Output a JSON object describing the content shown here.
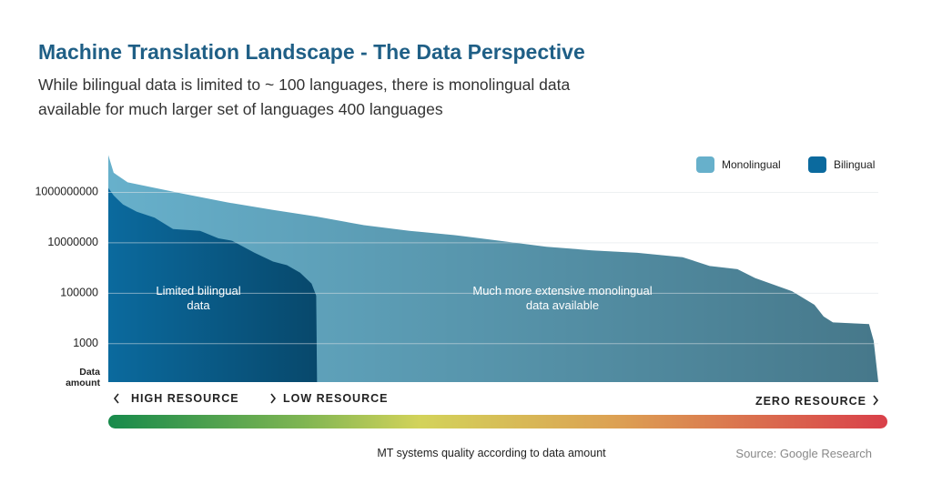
{
  "chart_data": {
    "type": "area",
    "title": "Machine Translation Landscape - The Data Perspective",
    "subtitle": "While bilingual data is limited to ~ 100 languages, there is monolingual data available for much larger set of languages 400 languages",
    "y_label": "Data amount",
    "log_y": true,
    "ylim": [
      30,
      100000000000
    ],
    "yticks": [
      1000,
      100000,
      10000000,
      1000000000
    ],
    "xlim": [
      0,
      100
    ],
    "grid": true,
    "legend": "top-right",
    "series": [
      {
        "name": "Monolingual",
        "color": "#67b0cb",
        "x": [
          0,
          0.7,
          2.5,
          9.6,
          15.5,
          21.4,
          27,
          33.2,
          39.1,
          45,
          50.9,
          56.9,
          62.8,
          68.7,
          74.6,
          78.1,
          81.7,
          84,
          88.8,
          91.7,
          92.9,
          94.1,
          98.8,
          99.4,
          100
        ],
        "values": [
          30000000000,
          6000000000,
          2500000000,
          900000000,
          400000000,
          200000000,
          110000000,
          50000000,
          30000000,
          20000000,
          12000000,
          7000000,
          5000000,
          4000000,
          2700000,
          1200000,
          900000,
          400000,
          120000,
          35000,
          12000,
          7000,
          6000,
          1300,
          30
        ]
      },
      {
        "name": "Bilingual",
        "color": "#0b6a9e",
        "x": [
          0,
          0.7,
          1.9,
          3.7,
          6,
          8.4,
          11.9,
          14.3,
          16.1,
          19,
          21.4,
          23.2,
          24.9,
          26.4,
          27,
          27.1
        ],
        "values": [
          1500000000,
          750000000,
          330000000,
          170000000,
          100000000,
          35000000,
          30000000,
          15000000,
          12000000,
          4000000,
          1800000,
          1300000,
          650000,
          240000,
          80000,
          30
        ]
      }
    ],
    "annotations": [
      "Limited bilingual data",
      "Much more extensive monolingual data available"
    ],
    "resource_labels": [
      "HIGH RESOURCE",
      "LOW RESOURCE",
      "ZERO RESOURCE"
    ],
    "caption": "MT systems quality according to data amount",
    "source": "Source: Google Research"
  }
}
